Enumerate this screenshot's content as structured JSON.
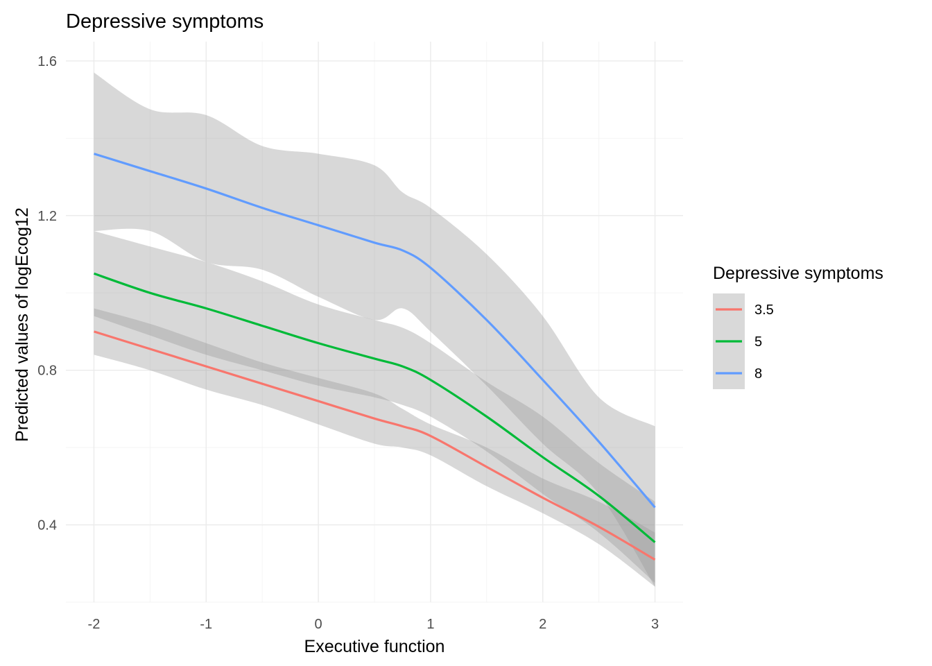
{
  "chart_data": {
    "type": "line",
    "title": "Depressive symptoms",
    "xlabel": "Executive function",
    "ylabel": "Predicted values of logEcog12",
    "xlim": [
      -2.25,
      3.25
    ],
    "ylim": [
      0.2,
      1.65
    ],
    "x_ticks": [
      -2,
      -1,
      0,
      1,
      2,
      3
    ],
    "x_tick_labels": [
      "-2",
      "-1",
      "0",
      "1",
      "2",
      "3"
    ],
    "y_ticks": [
      0.4,
      0.8,
      1.2,
      1.6
    ],
    "y_tick_labels": [
      "0.4",
      "0.8",
      "1.2",
      "1.6"
    ],
    "grid": true,
    "legend": {
      "title": "Depressive symptoms",
      "position": "right"
    },
    "x": [
      -2,
      -1.5,
      -1,
      -0.5,
      0,
      0.5,
      0.75,
      1,
      1.5,
      2,
      2.5,
      3
    ],
    "series": [
      {
        "name": "3.5",
        "color": "#F8766D",
        "values": [
          0.9,
          0.855,
          0.81,
          0.765,
          0.72,
          0.675,
          0.655,
          0.63,
          0.55,
          0.47,
          0.395,
          0.31
        ],
        "ci_upper": [
          0.96,
          0.92,
          0.87,
          0.82,
          0.78,
          0.74,
          0.7,
          0.66,
          0.6,
          0.52,
          0.46,
          0.38
        ],
        "ci_lower": [
          0.84,
          0.8,
          0.75,
          0.71,
          0.66,
          0.61,
          0.6,
          0.58,
          0.5,
          0.43,
          0.35,
          0.24
        ]
      },
      {
        "name": "5",
        "color": "#00BA38",
        "values": [
          1.05,
          1.0,
          0.96,
          0.915,
          0.87,
          0.83,
          0.81,
          0.775,
          0.68,
          0.575,
          0.475,
          0.355
        ],
        "ci_upper": [
          1.16,
          1.12,
          1.08,
          1.03,
          0.97,
          0.93,
          0.91,
          0.87,
          0.77,
          0.68,
          0.56,
          0.46
        ],
        "ci_lower": [
          0.94,
          0.89,
          0.84,
          0.8,
          0.76,
          0.73,
          0.71,
          0.68,
          0.59,
          0.48,
          0.38,
          0.25
        ]
      },
      {
        "name": "8",
        "color": "#619CFF",
        "values": [
          1.36,
          1.315,
          1.27,
          1.22,
          1.175,
          1.13,
          1.11,
          1.065,
          0.93,
          0.775,
          0.615,
          0.445
        ],
        "ci_upper": [
          1.57,
          1.475,
          1.46,
          1.38,
          1.36,
          1.33,
          1.26,
          1.22,
          1.1,
          0.94,
          0.73,
          0.655
        ],
        "ci_lower": [
          1.16,
          1.16,
          1.08,
          1.06,
          0.99,
          0.93,
          0.96,
          0.9,
          0.76,
          0.61,
          0.48,
          0.24
        ]
      }
    ]
  }
}
